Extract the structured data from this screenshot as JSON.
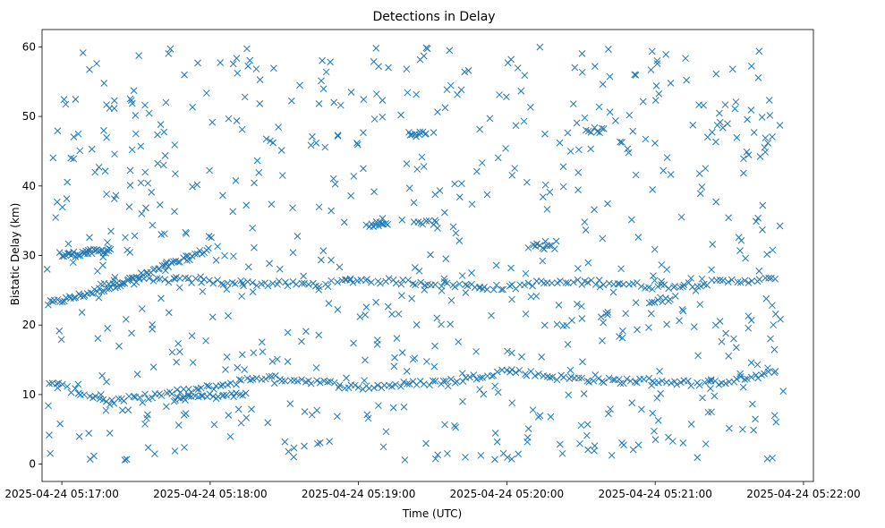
{
  "chart_data": {
    "type": "scatter",
    "title": "Detections in Delay",
    "xlabel": "Time (UTC)",
    "ylabel": "Bistatic Delay (km)",
    "marker": "x",
    "marker_color": "#1f77b4",
    "xlim": [
      "2025-04-24 05:16:52",
      "2025-04-24 05:22:04"
    ],
    "ylim": [
      -2.5,
      62.5
    ],
    "x_ticks": [
      "2025-04-24 05:17:00",
      "2025-04-24 05:18:00",
      "2025-04-24 05:19:00",
      "2025-04-24 05:20:00",
      "2025-04-24 05:21:00",
      "2025-04-24 05:22:00"
    ],
    "y_ticks": [
      0,
      10,
      20,
      30,
      40,
      50,
      60
    ],
    "grid": false,
    "legend": "none",
    "tracks": [
      {
        "points": [
          [
            "2025-04-24 05:16:54",
            23.0
          ],
          [
            "2025-04-24 05:17:05",
            24.0
          ],
          [
            "2025-04-24 05:17:20",
            25.5
          ],
          [
            "2025-04-24 05:17:35",
            27.5
          ],
          [
            "2025-04-24 05:17:50",
            29.5
          ],
          [
            "2025-04-24 05:18:00",
            31.0
          ]
        ],
        "count": 70
      },
      {
        "points": [
          [
            "2025-04-24 05:17:00",
            30.0
          ],
          [
            "2025-04-24 05:17:20",
            30.8
          ]
        ],
        "count": 30
      },
      {
        "points": [
          [
            "2025-04-24 05:17:15",
            26.0
          ],
          [
            "2025-04-24 05:17:45",
            26.5
          ],
          [
            "2025-04-24 05:18:15",
            26.0
          ],
          [
            "2025-04-24 05:18:45",
            25.8
          ],
          [
            "2025-04-24 05:19:00",
            26.5
          ],
          [
            "2025-04-24 05:19:30",
            26.0
          ],
          [
            "2025-04-24 05:20:00",
            25.3
          ],
          [
            "2025-04-24 05:20:10",
            26.0
          ],
          [
            "2025-04-24 05:20:40",
            26.2
          ],
          [
            "2025-04-24 05:21:00",
            25.5
          ],
          [
            "2025-04-24 05:21:20",
            26.0
          ],
          [
            "2025-04-24 05:21:40",
            26.5
          ],
          [
            "2025-04-24 05:21:50",
            26.5
          ]
        ],
        "count": 170
      },
      {
        "points": [
          [
            "2025-04-24 05:16:54",
            12.0
          ],
          [
            "2025-04-24 05:17:05",
            10.5
          ],
          [
            "2025-04-24 05:17:20",
            9.0
          ],
          [
            "2025-04-24 05:17:40",
            10.0
          ],
          [
            "2025-04-24 05:18:00",
            11.0
          ],
          [
            "2025-04-24 05:18:20",
            12.5
          ],
          [
            "2025-04-24 05:18:40",
            12.0
          ],
          [
            "2025-04-24 05:19:00",
            11.0
          ],
          [
            "2025-04-24 05:19:20",
            11.5
          ],
          [
            "2025-04-24 05:19:40",
            12.0
          ],
          [
            "2025-04-24 05:20:00",
            13.5
          ],
          [
            "2025-04-24 05:20:20",
            12.5
          ],
          [
            "2025-04-24 05:20:40",
            12.0
          ],
          [
            "2025-04-24 05:21:00",
            12.0
          ],
          [
            "2025-04-24 05:21:20",
            11.5
          ],
          [
            "2025-04-24 05:21:40",
            12.5
          ],
          [
            "2025-04-24 05:21:50",
            13.2
          ]
        ],
        "count": 200
      },
      {
        "points": [
          [
            "2025-04-24 05:17:45",
            9.5
          ],
          [
            "2025-04-24 05:18:15",
            10.0
          ]
        ],
        "count": 25
      },
      {
        "points": [
          [
            "2025-04-24 05:19:05",
            34.5
          ],
          [
            "2025-04-24 05:19:12",
            34.5
          ]
        ],
        "count": 10
      },
      {
        "points": [
          [
            "2025-04-24 05:19:20",
            47.5
          ],
          [
            "2025-04-24 05:19:28",
            47.5
          ]
        ],
        "count": 10
      },
      {
        "points": [
          [
            "2025-04-24 05:20:10",
            31.5
          ],
          [
            "2025-04-24 05:20:20",
            31.0
          ]
        ],
        "count": 10
      },
      {
        "points": [
          [
            "2025-04-24 05:20:32",
            48.0
          ],
          [
            "2025-04-24 05:20:40",
            48.0
          ]
        ],
        "count": 8
      },
      {
        "points": [
          [
            "2025-04-24 05:20:57",
            23.5
          ],
          [
            "2025-04-24 05:21:07",
            23.5
          ]
        ],
        "count": 8
      },
      {
        "points": [
          [
            "2025-04-24 05:19:22",
            34.8
          ],
          [
            "2025-04-24 05:19:32",
            34.8
          ]
        ],
        "count": 8
      }
    ],
    "scatter_noise": {
      "x_range": [
        "2025-04-24 05:16:54",
        "2025-04-24 05:21:52"
      ],
      "y_range": [
        0.5,
        60
      ],
      "count": 700
    }
  }
}
